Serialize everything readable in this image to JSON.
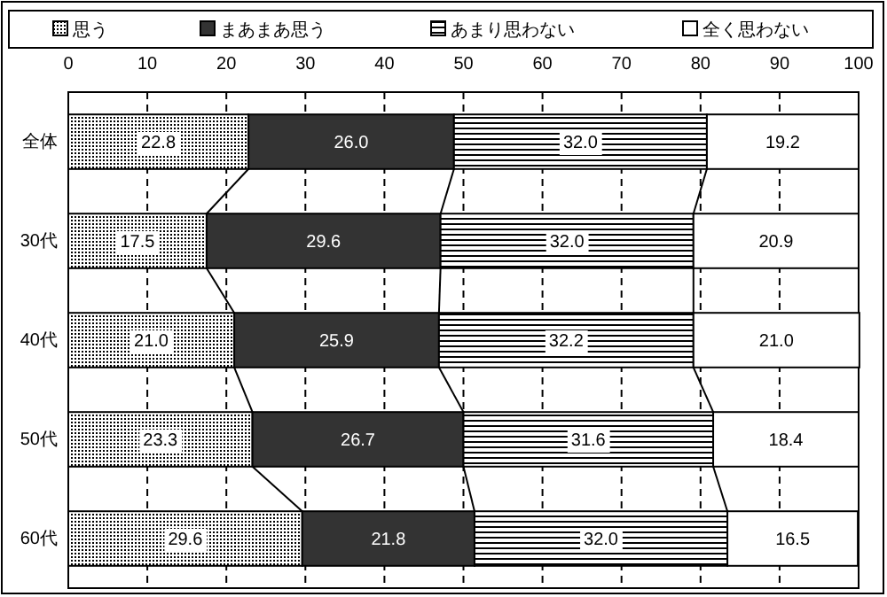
{
  "chart_data": {
    "type": "bar",
    "orientation": "horizontal",
    "stacked": true,
    "categories": [
      "全体",
      "30代",
      "40代",
      "50代",
      "60代"
    ],
    "series": [
      {
        "name": "思う",
        "color": "#000000",
        "values": [
          22.8,
          17.5,
          21.0,
          23.3,
          29.6
        ],
        "value_labels": [
          "22.8",
          "17.5",
          "21.0",
          "23.3",
          "29.6"
        ]
      },
      {
        "name": "まあまあ思う",
        "color": "#333333",
        "values": [
          26.0,
          29.6,
          25.9,
          26.7,
          21.8
        ],
        "value_labels": [
          "26.0",
          "29.6",
          "25.9",
          "26.7",
          "21.8"
        ]
      },
      {
        "name": "あまり思わない",
        "color": "#000000",
        "values": [
          32.0,
          32.0,
          32.2,
          31.6,
          32.0
        ],
        "value_labels": [
          "32.0",
          "32.0",
          "32.2",
          "31.6",
          "32.0"
        ]
      },
      {
        "name": "全く思わない",
        "color": "#ffffff",
        "values": [
          19.2,
          20.9,
          21.0,
          18.4,
          16.5
        ],
        "value_labels": [
          "19.2",
          "20.9",
          "21.0",
          "18.4",
          "16.5"
        ]
      }
    ],
    "xlim": [
      0,
      100
    ],
    "xticks": [
      0,
      10,
      20,
      30,
      40,
      50,
      60,
      70,
      80,
      90,
      100
    ],
    "grid": "x",
    "legend": "top"
  }
}
